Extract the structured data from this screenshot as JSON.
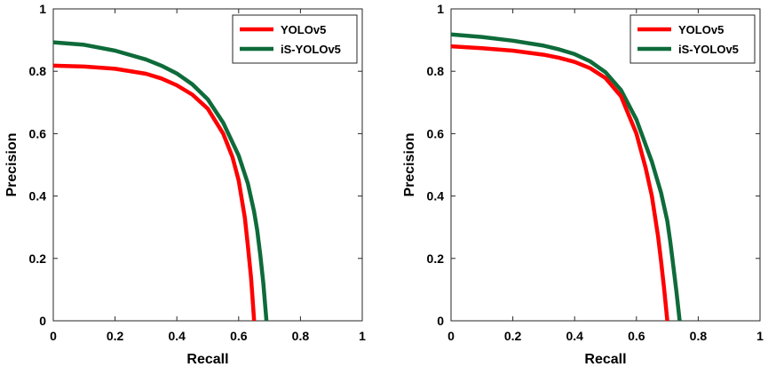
{
  "chart_data": [
    {
      "type": "line",
      "title": "",
      "xlabel": "Recall",
      "ylabel": "Precision",
      "xlim": [
        0,
        1
      ],
      "ylim": [
        0,
        1
      ],
      "xticks": [
        "0",
        "0.2",
        "0.4",
        "0.6",
        "0.8",
        "1"
      ],
      "yticks": [
        "0",
        "0.2",
        "0.4",
        "0.6",
        "0.8",
        "1"
      ],
      "grid": false,
      "legend_position": "top-right",
      "series": [
        {
          "name": "YOLOv5",
          "color": "#ff0000",
          "x": [
            0,
            0.1,
            0.2,
            0.3,
            0.35,
            0.4,
            0.45,
            0.5,
            0.55,
            0.58,
            0.6,
            0.62,
            0.63,
            0.64,
            0.645,
            0.65
          ],
          "y": [
            0.818,
            0.815,
            0.808,
            0.792,
            0.777,
            0.755,
            0.725,
            0.68,
            0.6,
            0.525,
            0.45,
            0.33,
            0.24,
            0.14,
            0.07,
            0
          ]
        },
        {
          "name": "iS-YOLOv5",
          "color": "#0e6b3a",
          "x": [
            0,
            0.1,
            0.2,
            0.3,
            0.35,
            0.4,
            0.45,
            0.5,
            0.55,
            0.6,
            0.63,
            0.65,
            0.66,
            0.67,
            0.68,
            0.69
          ],
          "y": [
            0.893,
            0.885,
            0.866,
            0.838,
            0.818,
            0.793,
            0.758,
            0.71,
            0.635,
            0.53,
            0.44,
            0.35,
            0.29,
            0.21,
            0.12,
            0
          ]
        }
      ]
    },
    {
      "type": "line",
      "title": "",
      "xlabel": "Recall",
      "ylabel": "Precision",
      "xlim": [
        0,
        1
      ],
      "ylim": [
        0,
        1
      ],
      "xticks": [
        "0",
        "0.2",
        "0.4",
        "0.6",
        "0.8",
        "1"
      ],
      "yticks": [
        "0",
        "0.2",
        "0.4",
        "0.6",
        "0.8",
        "1"
      ],
      "grid": false,
      "legend_position": "top-right",
      "series": [
        {
          "name": "YOLOv5",
          "color": "#ff0000",
          "x": [
            0,
            0.1,
            0.2,
            0.3,
            0.35,
            0.4,
            0.45,
            0.5,
            0.55,
            0.6,
            0.63,
            0.65,
            0.67,
            0.68,
            0.69,
            0.7
          ],
          "y": [
            0.88,
            0.874,
            0.866,
            0.853,
            0.843,
            0.83,
            0.81,
            0.778,
            0.72,
            0.6,
            0.49,
            0.4,
            0.27,
            0.19,
            0.1,
            0
          ]
        },
        {
          "name": "iS-YOLOv5",
          "color": "#0e6b3a",
          "x": [
            0,
            0.1,
            0.2,
            0.3,
            0.35,
            0.4,
            0.45,
            0.5,
            0.55,
            0.6,
            0.65,
            0.68,
            0.7,
            0.71,
            0.72,
            0.73,
            0.74
          ],
          "y": [
            0.918,
            0.91,
            0.898,
            0.882,
            0.87,
            0.855,
            0.832,
            0.797,
            0.74,
            0.645,
            0.51,
            0.41,
            0.32,
            0.25,
            0.17,
            0.09,
            0
          ]
        }
      ]
    }
  ]
}
